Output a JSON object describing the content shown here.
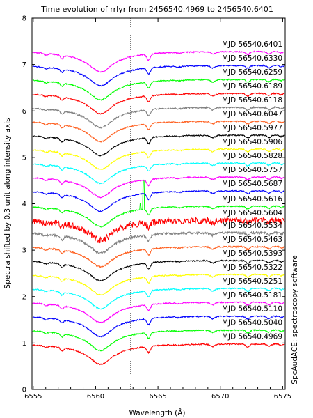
{
  "chart_data": {
    "type": "line",
    "title": "Time evolution of rrlyr from 2456540.4969 to 2456540.6401",
    "xlabel": "Wavelength (Å)",
    "ylabel": "Spectra shifted by 0.3 unit along intensity axis",
    "credit": "SpcAudACE: spectroscopy software",
    "xlim": [
      6554.9,
      6575.2
    ],
    "ylim": [
      0,
      8
    ],
    "xticks": [
      "6555",
      "6560",
      "6565",
      "6570",
      "6575"
    ],
    "yticks": [
      "0",
      "1",
      "2",
      "3",
      "4",
      "5",
      "6",
      "7",
      "8"
    ],
    "xtick_values": [
      6555,
      6560,
      6565,
      6570,
      6575
    ],
    "ytick_values": [
      0,
      1,
      2,
      3,
      4,
      5,
      6,
      7,
      8
    ],
    "vertical_marker_x": 6562.8,
    "grid": false,
    "legend": "right",
    "series": [
      {
        "name": "MJD 56540.4969",
        "color": "#ff0000",
        "offset": 0.98,
        "noise": 0.012
      },
      {
        "name": "MJD 56540.5040",
        "color": "#00ff00",
        "offset": 1.28,
        "noise": 0.012
      },
      {
        "name": "MJD 56540.5110",
        "color": "#0000ff",
        "offset": 1.58,
        "noise": 0.012
      },
      {
        "name": "MJD 56540.5181",
        "color": "#ff00ff",
        "offset": 1.88,
        "noise": 0.012
      },
      {
        "name": "MJD 56540.5251",
        "color": "#00ffff",
        "offset": 2.18,
        "noise": 0.012
      },
      {
        "name": "MJD 56540.5322",
        "color": "#ffff00",
        "offset": 2.48,
        "noise": 0.012
      },
      {
        "name": "MJD 56540.5393",
        "color": "#000000",
        "offset": 2.78,
        "noise": 0.012
      },
      {
        "name": "MJD 56540.5463",
        "color": "#ff6020",
        "offset": 3.08,
        "noise": 0.015
      },
      {
        "name": "MJD 56540.5534",
        "color": "#808080",
        "offset": 3.38,
        "noise": 0.025
      },
      {
        "name": "MJD 56540.5604",
        "color": "#ff0000",
        "offset": 3.65,
        "noise": 0.065
      },
      {
        "name": "MJD 56540.5616",
        "color": "#00ff00",
        "offset": 3.95,
        "noise": 0.012,
        "spike": true
      },
      {
        "name": "MJD 56540.5687",
        "color": "#0000ff",
        "offset": 4.28,
        "noise": 0.012
      },
      {
        "name": "MJD 56540.5757",
        "color": "#ff00ff",
        "offset": 4.58,
        "noise": 0.012
      },
      {
        "name": "MJD 56540.5828",
        "color": "#00ffff",
        "offset": 4.88,
        "noise": 0.012
      },
      {
        "name": "MJD 56540.5906",
        "color": "#ffff00",
        "offset": 5.18,
        "noise": 0.012
      },
      {
        "name": "MJD 56540.5977",
        "color": "#000000",
        "offset": 5.48,
        "noise": 0.012
      },
      {
        "name": "MJD 56540.6047",
        "color": "#ff6020",
        "offset": 5.78,
        "noise": 0.012
      },
      {
        "name": "MJD 56540.6118",
        "color": "#808080",
        "offset": 6.08,
        "noise": 0.015
      },
      {
        "name": "MJD 56540.6189",
        "color": "#ff0000",
        "offset": 6.38,
        "noise": 0.012
      },
      {
        "name": "MJD 56540.6259",
        "color": "#00ff00",
        "offset": 6.68,
        "noise": 0.012
      },
      {
        "name": "MJD 56540.6330",
        "color": "#0000ff",
        "offset": 6.98,
        "noise": 0.012
      },
      {
        "name": "MJD 56540.6401",
        "color": "#ff00ff",
        "offset": 7.28,
        "noise": 0.012
      }
    ]
  }
}
